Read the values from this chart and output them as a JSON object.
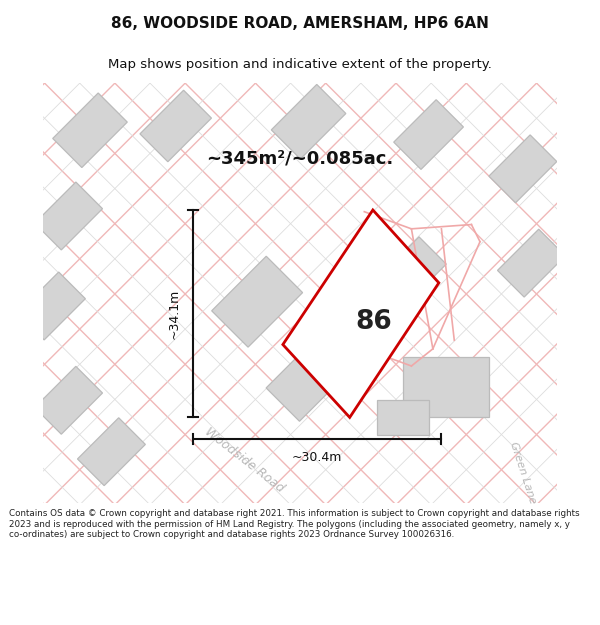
{
  "title": "86, WOODSIDE ROAD, AMERSHAM, HP6 6AN",
  "subtitle": "Map shows position and indicative extent of the property.",
  "area_label": "~345m²/~0.085ac.",
  "property_number": "86",
  "dim_width": "~30.4m",
  "dim_height": "~34.1m",
  "road_label1": "Woodside Road",
  "road_label2": "Green Lane",
  "footer": "Contains OS data © Crown copyright and database right 2021. This information is subject to Crown copyright and database rights 2023 and is reproduced with the permission of HM Land Registry. The polygons (including the associated geometry, namely x, y co-ordinates) are subject to Crown copyright and database rights 2023 Ordnance Survey 100026316.",
  "map_bg": "#eeeeee",
  "property_fill": "#ffffff",
  "property_edge": "#cc0000",
  "neighbor_fill": "#d4d4d4",
  "neighbor_edge": "#bbbbbb",
  "dim_line_color": "#111111",
  "grid_line_color": "#f0b8b8",
  "grid_line_color2": "#dddddd",
  "road_area_color": "#f8f8f8"
}
